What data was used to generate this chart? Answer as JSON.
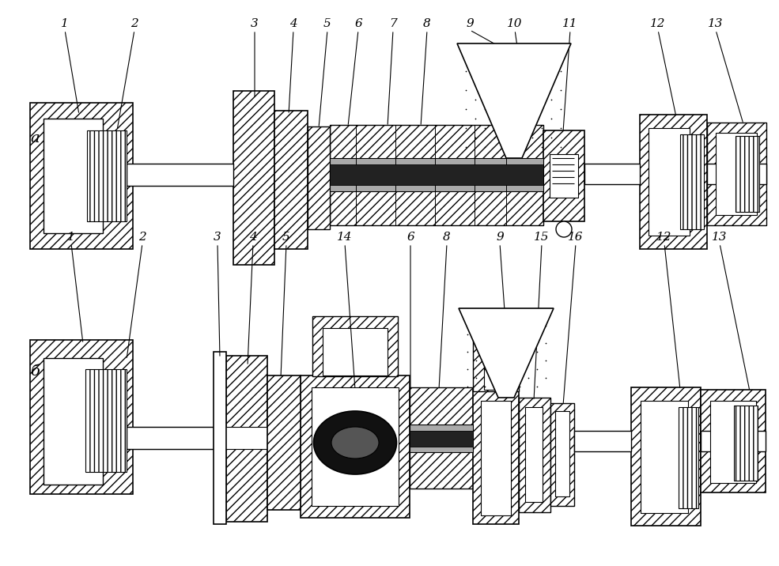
{
  "background": "#ffffff",
  "figsize": [
    9.85,
    7.16
  ],
  "dpi": 100
}
